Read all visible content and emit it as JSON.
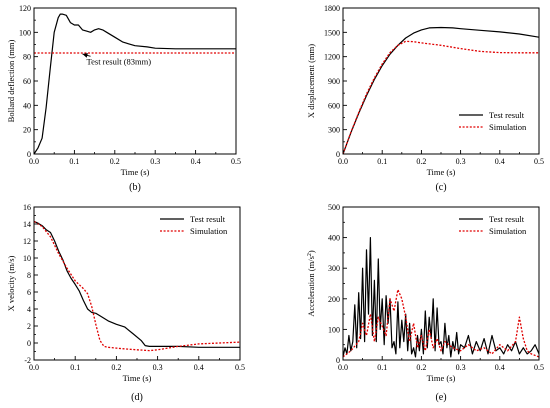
{
  "chart_data": [
    {
      "id": "b",
      "type": "line",
      "panel_label": "(b)",
      "xlabel": "Time (s)",
      "ylabel": "Bollard deflection (mm)",
      "xlim": [
        0,
        0.5
      ],
      "ylim": [
        0,
        120
      ],
      "xticks": [
        "0.0",
        "0.1",
        "0.2",
        "0.3",
        "0.4",
        "0.5"
      ],
      "yticks": [
        "0",
        "20",
        "40",
        "60",
        "80",
        "100",
        "120"
      ],
      "legend": "none",
      "annotation": {
        "text": "Test result (83mm)",
        "x": 0.13,
        "y": 77,
        "arrow_to": [
          0.12,
          83
        ]
      },
      "series": [
        {
          "color": "#000000",
          "dash": "solid",
          "x": [
            0,
            0.01,
            0.02,
            0.03,
            0.04,
            0.05,
            0.06,
            0.065,
            0.07,
            0.08,
            0.09,
            0.1,
            0.11,
            0.12,
            0.13,
            0.14,
            0.15,
            0.16,
            0.17,
            0.18,
            0.2,
            0.22,
            0.25,
            0.28,
            0.3,
            0.35,
            0.4,
            0.45,
            0.5
          ],
          "y": [
            0,
            5,
            13,
            38,
            70,
            100,
            112,
            115,
            115,
            114,
            108,
            106,
            106,
            102,
            101,
            100,
            102,
            103,
            102,
            100,
            96,
            92,
            89,
            88,
            87,
            86.5,
            86.5,
            86.5,
            86.5
          ]
        },
        {
          "color": "#e00000",
          "dash": "dotted",
          "x": [
            0,
            0.5
          ],
          "y": [
            83,
            83
          ]
        }
      ]
    },
    {
      "id": "c",
      "type": "line",
      "panel_label": "(c)",
      "xlabel": "Time (s)",
      "ylabel": "X displacement (mm)",
      "xlim": [
        0,
        0.5
      ],
      "ylim": [
        0,
        1800
      ],
      "xticks": [
        "0.0",
        "0.1",
        "0.2",
        "0.3",
        "0.4",
        "0.5"
      ],
      "yticks": [
        "0",
        "300",
        "600",
        "900",
        "1200",
        "1500",
        "1800"
      ],
      "legend": "bottom-right",
      "series": [
        {
          "name": "Test result",
          "color": "#000000",
          "dash": "solid",
          "x": [
            0,
            0.02,
            0.04,
            0.06,
            0.08,
            0.1,
            0.12,
            0.14,
            0.16,
            0.18,
            0.2,
            0.22,
            0.25,
            0.28,
            0.3,
            0.35,
            0.4,
            0.45,
            0.5
          ],
          "y": [
            0,
            260,
            500,
            720,
            920,
            1090,
            1230,
            1340,
            1430,
            1490,
            1530,
            1555,
            1560,
            1555,
            1545,
            1525,
            1505,
            1480,
            1440
          ]
        },
        {
          "name": "Simulation",
          "color": "#e00000",
          "dash": "dotted",
          "x": [
            0,
            0.02,
            0.04,
            0.06,
            0.08,
            0.1,
            0.12,
            0.14,
            0.16,
            0.18,
            0.2,
            0.25,
            0.3,
            0.35,
            0.4,
            0.45,
            0.5
          ],
          "y": [
            0,
            265,
            510,
            740,
            940,
            1110,
            1250,
            1340,
            1390,
            1385,
            1370,
            1340,
            1300,
            1265,
            1250,
            1248,
            1248
          ]
        }
      ]
    },
    {
      "id": "d",
      "type": "line",
      "panel_label": "(d)",
      "xlabel": "Time (s)",
      "ylabel": "X velocity (m/s)",
      "xlim": [
        0,
        0.5
      ],
      "ylim": [
        -2,
        16
      ],
      "xticks": [
        "0.0",
        "0.1",
        "0.2",
        "0.3",
        "0.4",
        "0.5"
      ],
      "yticks": [
        "-2",
        "0",
        "2",
        "4",
        "6",
        "8",
        "10",
        "12",
        "14",
        "16"
      ],
      "legend": "top-right",
      "series": [
        {
          "name": "Test result",
          "color": "#000000",
          "dash": "solid",
          "x": [
            0,
            0.01,
            0.02,
            0.03,
            0.04,
            0.05,
            0.06,
            0.07,
            0.08,
            0.09,
            0.1,
            0.11,
            0.12,
            0.13,
            0.14,
            0.15,
            0.16,
            0.18,
            0.2,
            0.22,
            0.24,
            0.26,
            0.27,
            0.28,
            0.3,
            0.35,
            0.4,
            0.45,
            0.5
          ],
          "y": [
            14.3,
            14.1,
            13.8,
            13.3,
            13.0,
            12.0,
            10.8,
            9.8,
            8.5,
            7.6,
            6.9,
            6.1,
            5.0,
            4.0,
            3.6,
            3.5,
            3.2,
            2.6,
            2.2,
            1.9,
            1.1,
            0.3,
            -0.3,
            -0.4,
            -0.4,
            -0.4,
            -0.5,
            -0.5,
            -0.5
          ]
        },
        {
          "name": "Simulation",
          "color": "#e00000",
          "dash": "dotted",
          "x": [
            0,
            0.02,
            0.04,
            0.06,
            0.08,
            0.1,
            0.12,
            0.13,
            0.14,
            0.15,
            0.16,
            0.17,
            0.18,
            0.2,
            0.22,
            0.25,
            0.28,
            0.3,
            0.35,
            0.4,
            0.45,
            0.5
          ],
          "y": [
            14.3,
            13.7,
            12.5,
            10.5,
            8.8,
            7.3,
            6.4,
            5.8,
            4.3,
            2.2,
            0.3,
            -0.4,
            -0.5,
            -0.6,
            -0.7,
            -0.8,
            -0.9,
            -0.8,
            -0.4,
            -0.1,
            0.0,
            0.1
          ]
        }
      ]
    },
    {
      "id": "e",
      "type": "line",
      "panel_label": "(e)",
      "xlabel": "Time (s)",
      "ylabel": "Acceleration (m/s",
      "ylabel_sup": "2",
      "ylabel_end": ")",
      "xlim": [
        0,
        0.5
      ],
      "ylim": [
        0,
        500
      ],
      "xticks": [
        "0.0",
        "0.1",
        "0.2",
        "0.3",
        "0.4",
        "0.5"
      ],
      "yticks": [
        "0",
        "100",
        "200",
        "300",
        "400",
        "500"
      ],
      "legend": "top-right",
      "series": [
        {
          "name": "Test result",
          "color": "#000000",
          "dash": "solid",
          "x": [
            0,
            0.005,
            0.01,
            0.015,
            0.02,
            0.025,
            0.03,
            0.035,
            0.04,
            0.045,
            0.05,
            0.055,
            0.06,
            0.065,
            0.07,
            0.075,
            0.08,
            0.085,
            0.09,
            0.095,
            0.1,
            0.105,
            0.11,
            0.115,
            0.12,
            0.125,
            0.13,
            0.135,
            0.14,
            0.145,
            0.15,
            0.155,
            0.16,
            0.165,
            0.17,
            0.175,
            0.18,
            0.185,
            0.19,
            0.195,
            0.2,
            0.205,
            0.21,
            0.215,
            0.22,
            0.225,
            0.23,
            0.235,
            0.24,
            0.245,
            0.25,
            0.255,
            0.26,
            0.265,
            0.27,
            0.275,
            0.28,
            0.285,
            0.29,
            0.295,
            0.3,
            0.31,
            0.32,
            0.33,
            0.34,
            0.35,
            0.36,
            0.37,
            0.38,
            0.39,
            0.4,
            0.41,
            0.42,
            0.43,
            0.44,
            0.45,
            0.46,
            0.47,
            0.48,
            0.49,
            0.5
          ],
          "y": [
            10,
            40,
            20,
            80,
            30,
            60,
            180,
            40,
            220,
            70,
            300,
            60,
            360,
            150,
            400,
            80,
            260,
            60,
            330,
            100,
            200,
            50,
            210,
            120,
            200,
            40,
            60,
            20,
            190,
            40,
            130,
            60,
            150,
            30,
            120,
            20,
            40,
            10,
            80,
            30,
            100,
            20,
            160,
            40,
            140,
            70,
            200,
            30,
            170,
            50,
            60,
            20,
            120,
            40,
            80,
            10,
            60,
            30,
            90,
            20,
            50,
            40,
            80,
            20,
            60,
            30,
            70,
            20,
            80,
            30,
            40,
            20,
            50,
            30,
            60,
            20,
            40,
            20,
            30,
            50,
            20
          ]
        },
        {
          "name": "Simulation",
          "color": "#e00000",
          "dash": "dotted",
          "x": [
            0,
            0.02,
            0.04,
            0.05,
            0.06,
            0.07,
            0.08,
            0.09,
            0.1,
            0.11,
            0.12,
            0.13,
            0.14,
            0.15,
            0.16,
            0.17,
            0.18,
            0.19,
            0.2,
            0.21,
            0.22,
            0.23,
            0.24,
            0.25,
            0.26,
            0.28,
            0.3,
            0.32,
            0.34,
            0.36,
            0.38,
            0.4,
            0.42,
            0.44,
            0.45,
            0.46,
            0.47,
            0.48,
            0.5
          ],
          "y": [
            10,
            30,
            60,
            120,
            80,
            150,
            60,
            140,
            110,
            80,
            200,
            160,
            230,
            200,
            140,
            60,
            120,
            40,
            80,
            30,
            100,
            40,
            70,
            30,
            60,
            40,
            30,
            50,
            30,
            40,
            20,
            50,
            30,
            60,
            140,
            70,
            30,
            20,
            10
          ]
        }
      ]
    }
  ]
}
